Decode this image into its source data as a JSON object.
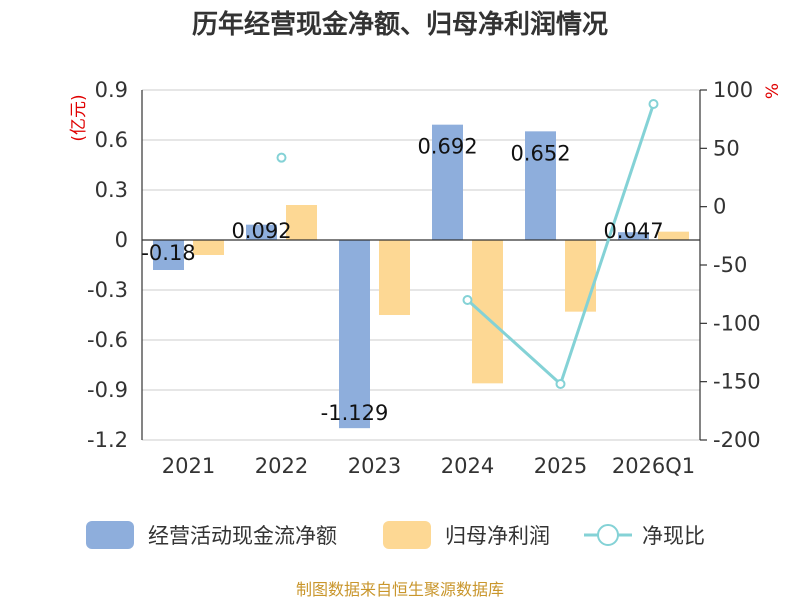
{
  "chart_data": {
    "type": "bar",
    "title": "历年经营现金净额、归母净利润情况",
    "categories": [
      "2021",
      "2022",
      "2023",
      "2024",
      "2025",
      "2026Q1"
    ],
    "left_axis": {
      "unit": "(亿元)",
      "ylim": [
        -1.2,
        0.9
      ],
      "ticks": [
        0.9,
        0.6,
        0.3,
        0,
        -0.3,
        -0.6,
        -0.9,
        -1.2
      ],
      "tick_labels": [
        "0.9",
        "0.6",
        "0.3",
        "0",
        "-0.3",
        "-0.6",
        "-0.9",
        "-1.2"
      ]
    },
    "right_axis": {
      "unit": "%",
      "ylim": [
        -200,
        100
      ],
      "ticks": [
        100,
        50,
        0,
        -50,
        -100,
        -150,
        -200
      ],
      "tick_labels": [
        "100",
        "50",
        "0",
        "-50",
        "-100",
        "-150",
        "-200"
      ]
    },
    "series": [
      {
        "name": "经营活动现金流净额",
        "type": "bar",
        "axis": "left",
        "color": "#8eaedc",
        "values": [
          -0.18,
          0.092,
          -1.129,
          0.692,
          0.652,
          0.047
        ],
        "labels": [
          "-0.18",
          "0.092",
          "-1.129",
          "0.692",
          "0.652",
          "0.047"
        ]
      },
      {
        "name": "归母净利润",
        "type": "bar",
        "axis": "left",
        "color": "#fdd894",
        "values": [
          -0.09,
          0.21,
          -0.45,
          -0.86,
          -0.43,
          0.05
        ]
      },
      {
        "name": "净现比",
        "type": "line",
        "axis": "right",
        "color": "#84d2d6",
        "values": [
          null,
          42,
          null,
          -80,
          -152,
          88
        ]
      }
    ],
    "grid": true,
    "legend_position": "bottom"
  },
  "source": "制图数据来自恒生聚源数据库"
}
